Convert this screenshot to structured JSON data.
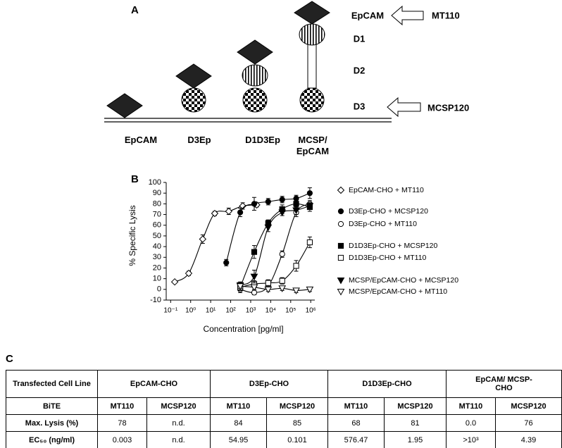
{
  "panel_a": {
    "label": "A",
    "domain_labels": [
      "EpCAM",
      "D1",
      "D2",
      "D3"
    ],
    "antibodies": [
      "MT110",
      "MCSP120"
    ],
    "constructs": [
      "EpCAM",
      "D3Ep",
      "D1D3Ep",
      "MCSP/ EpCAM"
    ]
  },
  "chart_data": {
    "type": "scatter",
    "label": "B",
    "x_label": "Concentration [pg/ml]",
    "y_label": "% Specific Lysis",
    "xscale": "log",
    "xlim": [
      0.06,
      1600000
    ],
    "ylim": [
      -10,
      100
    ],
    "xticks": [
      {
        "value": 0.1,
        "label": "10⁻¹"
      },
      {
        "value": 1,
        "label": "10⁰"
      },
      {
        "value": 10,
        "label": "10¹"
      },
      {
        "value": 100,
        "label": "10²"
      },
      {
        "value": 1000,
        "label": "10³"
      },
      {
        "value": 10000,
        "label": "10⁴"
      },
      {
        "value": 100000,
        "label": "10⁵"
      },
      {
        "value": 1000000,
        "label": "10⁶"
      }
    ],
    "yticks": [
      -10,
      0,
      10,
      20,
      30,
      40,
      50,
      60,
      70,
      80,
      90,
      100
    ],
    "series": [
      {
        "name": "EpCAM-CHO + MT110",
        "color": "#000000",
        "marker": "diamond",
        "filled": false,
        "x": [
          0.16,
          0.8,
          4,
          16,
          80,
          400,
          2000
        ],
        "values": [
          7,
          15,
          47,
          71,
          73,
          78,
          79
        ],
        "errors": [
          1,
          2,
          4,
          2,
          3,
          3,
          2
        ]
      },
      {
        "name": "D3Ep-CHO + MCSP120",
        "color": "#000000",
        "marker": "circle",
        "filled": true,
        "x": [
          60,
          300,
          1500,
          7500,
          37500,
          187500,
          900000
        ],
        "values": [
          25,
          72,
          80,
          82,
          84,
          85,
          90
        ],
        "errors": [
          3,
          4,
          6,
          3,
          3,
          3,
          5
        ]
      },
      {
        "name": "D3Ep-CHO + MT110",
        "color": "#000000",
        "marker": "circle",
        "filled": false,
        "x": [
          300,
          1500,
          7500,
          37500,
          187500,
          900000
        ],
        "values": [
          0,
          -3,
          3,
          33,
          72,
          80
        ],
        "errors": [
          3,
          2,
          3,
          3,
          4,
          3
        ]
      },
      {
        "name": "D1D3Ep-CHO + MCSP120",
        "color": "#000000",
        "marker": "square",
        "filled": true,
        "x": [
          300,
          1500,
          7500,
          37500,
          187500,
          900000
        ],
        "values": [
          2,
          35,
          62,
          75,
          80,
          77
        ],
        "errors": [
          3,
          6,
          3,
          4,
          3,
          4
        ]
      },
      {
        "name": "D1D3Ep-CHO + MT110",
        "color": "#000000",
        "marker": "square",
        "filled": false,
        "x": [
          300,
          1500,
          7500,
          37500,
          187500,
          900000
        ],
        "values": [
          2,
          5,
          6,
          8,
          22,
          44
        ],
        "errors": [
          2,
          3,
          3,
          3,
          5,
          5
        ]
      },
      {
        "name": "MCSP/EpCAM-CHO + MCSP120",
        "color": "#000000",
        "marker": "triangle",
        "filled": true,
        "x": [
          300,
          1500,
          7500,
          37500,
          187500,
          900000
        ],
        "values": [
          4,
          12,
          58,
          72,
          74,
          78
        ],
        "errors": [
          3,
          6,
          4,
          3,
          4,
          3
        ]
      },
      {
        "name": "MCSP/EpCAM-CHO + MT110",
        "color": "#000000",
        "marker": "triangle",
        "filled": false,
        "x": [
          300,
          1500,
          7500,
          37500,
          187500,
          900000
        ],
        "values": [
          3,
          2,
          0,
          1,
          -1,
          0
        ],
        "errors": [
          2,
          2,
          2,
          2,
          2,
          2
        ]
      }
    ]
  },
  "table": {
    "label": "C",
    "row_label": "Transfected Cell Line",
    "groups": [
      "EpCAM-CHO",
      "D3Ep-CHO",
      "D1D3Ep-CHO",
      "EpCAM/ MCSP-CHO"
    ],
    "rows": [
      [
        "BiTE",
        "MT110",
        "MCSP120",
        "MT110",
        "MCSP120",
        "MT110",
        "MCSP120",
        "MT110",
        "MCSP120"
      ],
      [
        "Max. Lysis (%)",
        "78",
        "n.d.",
        "84",
        "85",
        "68",
        "81",
        "0.0",
        "76"
      ],
      [
        "EC₅₀ (ng/ml)",
        "0.003",
        "n.d.",
        "54.95",
        "0.101",
        "576.47",
        "1.95",
        ">10³",
        "4.39"
      ]
    ]
  }
}
